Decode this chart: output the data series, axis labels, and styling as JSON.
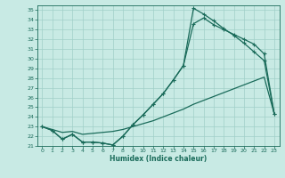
{
  "xlabel": "Humidex (Indice chaleur)",
  "ylabel": "",
  "background_color": "#c8eae4",
  "grid_color": "#a0cfc8",
  "line_color": "#1a6b5a",
  "xlim": [
    -0.5,
    23.5
  ],
  "ylim": [
    21,
    35.5
  ],
  "xticks": [
    0,
    1,
    2,
    3,
    4,
    5,
    6,
    7,
    8,
    9,
    10,
    11,
    12,
    13,
    14,
    15,
    16,
    17,
    18,
    19,
    20,
    21,
    22,
    23
  ],
  "yticks": [
    21,
    22,
    23,
    24,
    25,
    26,
    27,
    28,
    29,
    30,
    31,
    32,
    33,
    34,
    35
  ],
  "line1_x": [
    0,
    1,
    2,
    3,
    4,
    5,
    6,
    7,
    8,
    9,
    10,
    11,
    12,
    13,
    14,
    15,
    16,
    17,
    18,
    19,
    20,
    21,
    22,
    23
  ],
  "line1_y": [
    23.0,
    22.6,
    21.7,
    22.2,
    21.4,
    21.4,
    21.3,
    21.1,
    22.0,
    23.2,
    24.2,
    25.3,
    26.4,
    27.8,
    29.3,
    35.2,
    34.6,
    33.9,
    33.1,
    32.4,
    31.6,
    30.7,
    29.8,
    24.3
  ],
  "line2_x": [
    0,
    1,
    2,
    3,
    4,
    5,
    6,
    7,
    8,
    9,
    10,
    11,
    12,
    13,
    14,
    15,
    16,
    17,
    18,
    19,
    20,
    21,
    22,
    23
  ],
  "line2_y": [
    23.0,
    22.6,
    21.7,
    22.2,
    21.4,
    21.4,
    21.3,
    21.1,
    22.0,
    23.2,
    24.2,
    25.3,
    26.4,
    27.8,
    29.3,
    33.6,
    34.2,
    33.5,
    33.0,
    32.5,
    32.0,
    31.5,
    30.5,
    24.3
  ],
  "line3_x": [
    0,
    1,
    2,
    3,
    4,
    5,
    6,
    7,
    8,
    9,
    10,
    11,
    12,
    13,
    14,
    15,
    16,
    17,
    18,
    19,
    20,
    21,
    22,
    23
  ],
  "line3_y": [
    23.0,
    22.7,
    22.4,
    22.5,
    22.2,
    22.3,
    22.4,
    22.5,
    22.7,
    23.0,
    23.3,
    23.6,
    24.0,
    24.4,
    24.8,
    25.3,
    25.7,
    26.1,
    26.5,
    26.9,
    27.3,
    27.7,
    28.1,
    24.3
  ]
}
